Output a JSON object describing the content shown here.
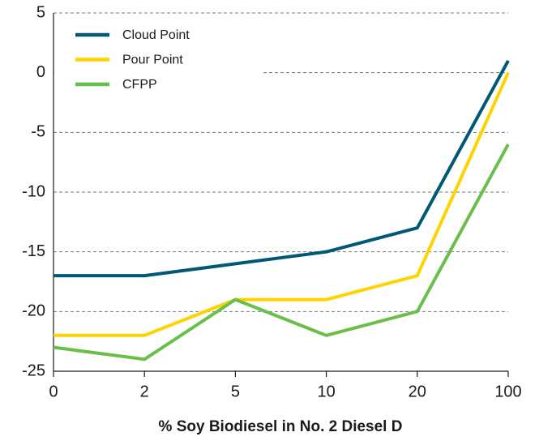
{
  "chart_data": {
    "type": "line",
    "x_label": "% Soy Biodiesel in No. 2 Diesel D",
    "categories": [
      "0",
      "2",
      "5",
      "10",
      "20",
      "100"
    ],
    "series": [
      {
        "name": "Cloud Point",
        "color": "#005776",
        "values": [
          -17,
          -17,
          -16,
          -15,
          -13,
          1
        ]
      },
      {
        "name": "Pour Point",
        "color": "#ffd200",
        "values": [
          -22,
          -22,
          -19,
          -19,
          -17,
          0
        ]
      },
      {
        "name": "CFPP",
        "color": "#6abf4b",
        "values": [
          -23,
          -24,
          -19,
          -22,
          -20,
          -6
        ]
      }
    ],
    "ylim": [
      -25,
      5
    ],
    "yticks": [
      -25,
      -20,
      -15,
      -10,
      -5,
      0,
      5
    ],
    "grid": true,
    "legend": "upper-left"
  }
}
